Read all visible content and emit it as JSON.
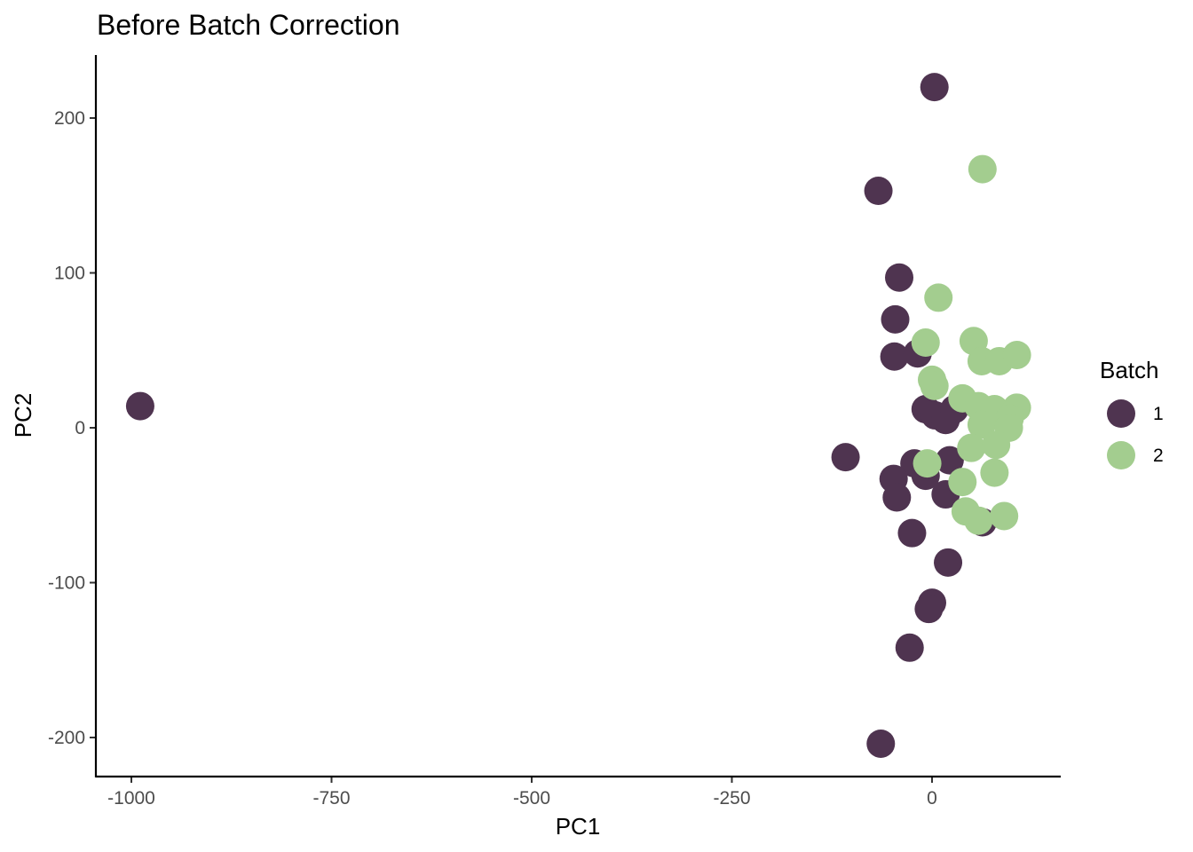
{
  "chart_data": {
    "type": "scatter",
    "title": "Before Batch Correction",
    "xlabel": "PC1",
    "ylabel": "PC2",
    "xlim": [
      -1045,
      160
    ],
    "ylim": [
      -225,
      240
    ],
    "x_ticks": [
      -1000,
      -750,
      -500,
      -250,
      0
    ],
    "x_tick_labels": [
      "-1000",
      "-750",
      "-500",
      "-250",
      "0"
    ],
    "y_ticks": [
      -200,
      -100,
      0,
      100,
      200
    ],
    "y_tick_labels": [
      "-200",
      "-100",
      "0",
      "100",
      "200"
    ],
    "grid": false,
    "legend": {
      "title": "Batch",
      "position": "right",
      "entries": [
        {
          "label": "1",
          "color": "#4f3450"
        },
        {
          "label": "2",
          "color": "#a3cd8f"
        }
      ]
    },
    "series": [
      {
        "name": "1",
        "color": "#4f3450",
        "points": [
          [
            -989,
            14
          ],
          [
            3,
            220
          ],
          [
            -67,
            153
          ],
          [
            -41,
            97
          ],
          [
            -46,
            70
          ],
          [
            -47,
            46
          ],
          [
            -18,
            48
          ],
          [
            -8,
            12
          ],
          [
            4,
            8
          ],
          [
            17,
            5
          ],
          [
            28,
            12
          ],
          [
            -108,
            -19
          ],
          [
            -22,
            -23
          ],
          [
            -48,
            -33
          ],
          [
            -8,
            -31
          ],
          [
            22,
            -21
          ],
          [
            -44,
            -45
          ],
          [
            17,
            -43
          ],
          [
            -25,
            -68
          ],
          [
            63,
            -61
          ],
          [
            20,
            -87
          ],
          [
            0,
            -113
          ],
          [
            -4,
            -117
          ],
          [
            -28,
            -142
          ],
          [
            -64,
            -204
          ]
        ]
      },
      {
        "name": "2",
        "color": "#a3cd8f",
        "points": [
          [
            63,
            167
          ],
          [
            8,
            84
          ],
          [
            -8,
            55
          ],
          [
            52,
            56
          ],
          [
            62,
            43
          ],
          [
            84,
            43
          ],
          [
            106,
            47
          ],
          [
            0,
            31
          ],
          [
            3,
            27
          ],
          [
            38,
            19
          ],
          [
            58,
            14
          ],
          [
            78,
            12
          ],
          [
            106,
            13
          ],
          [
            97,
            6
          ],
          [
            62,
            2
          ],
          [
            96,
            0
          ],
          [
            49,
            -13
          ],
          [
            80,
            -11
          ],
          [
            -6,
            -23
          ],
          [
            78,
            -29
          ],
          [
            38,
            -35
          ],
          [
            42,
            -54
          ],
          [
            58,
            -60
          ],
          [
            90,
            -57
          ]
        ]
      }
    ]
  }
}
